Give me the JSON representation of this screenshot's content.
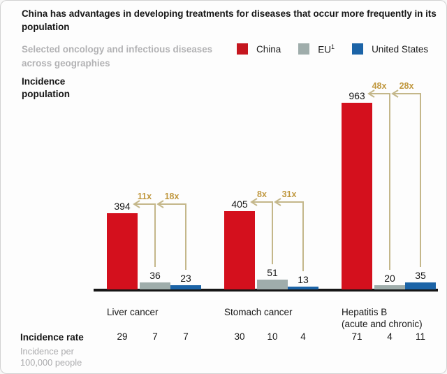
{
  "header": {
    "title": "China has advantages in developing treatments for diseases that occur more frequently in its population",
    "subtitle_lines": [
      "Selected oncology and infectious diseases",
      "across geographies"
    ]
  },
  "legend": {
    "items": [
      {
        "label": "China",
        "superscript": "",
        "color": "#c5161f"
      },
      {
        "label": "EU",
        "superscript": "1",
        "color": "#9fadab"
      },
      {
        "label": "United States",
        "superscript": "",
        "color": "#1c64a7"
      }
    ]
  },
  "axis_label_lines": [
    "Incidence",
    "population"
  ],
  "chart_data": {
    "type": "bar",
    "title": "China has advantages in developing treatments for diseases that occur more frequently in its population",
    "subtitle": "Selected oncology and infectious diseases across geographies",
    "ylabel": "Incidence population",
    "xlabel": "",
    "gridlines": false,
    "legend_position": "top",
    "ylim": [
      0,
      1000
    ],
    "categories": [
      "Liver cancer",
      "Stomach cancer",
      "Hepatitis B (acute and chronic)"
    ],
    "category_label_lines": [
      [
        "Liver cancer"
      ],
      [
        "Stomach cancer"
      ],
      [
        "Hepatitis B",
        "(acute and chronic)"
      ]
    ],
    "series": [
      {
        "name": "China",
        "color": "#d4101d",
        "values": [
          394,
          405,
          963
        ]
      },
      {
        "name": "EU",
        "color": "#9fadab",
        "values": [
          36,
          51,
          20
        ]
      },
      {
        "name": "United States",
        "color": "#1c64a7",
        "values": [
          23,
          13,
          35
        ]
      }
    ],
    "multipliers": [
      {
        "category": "Liver cancer",
        "eu_vs_china": "11x",
        "us_vs_china": "18x"
      },
      {
        "category": "Stomach cancer",
        "eu_vs_china": "8x",
        "us_vs_china": "31x"
      },
      {
        "category": "Hepatitis B (acute and chronic)",
        "eu_vs_china": "48x",
        "us_vs_china": "28x"
      }
    ],
    "value_labels_shown": true
  },
  "footer": {
    "rate_label": "Incidence rate",
    "rate_sublabel_lines": [
      "Incidence per",
      "100,000 people"
    ],
    "incidence_rates": [
      [
        29,
        7,
        7
      ],
      [
        30,
        10,
        4
      ],
      [
        71,
        4,
        11
      ]
    ]
  },
  "colors": {
    "china": "#d4101d",
    "eu": "#9fadab",
    "us": "#1c64a7",
    "arrow_line": "#c4b78a",
    "arrow_label": "#c0983f",
    "axis": "#161616",
    "muted_text": "#b2b2b4"
  }
}
